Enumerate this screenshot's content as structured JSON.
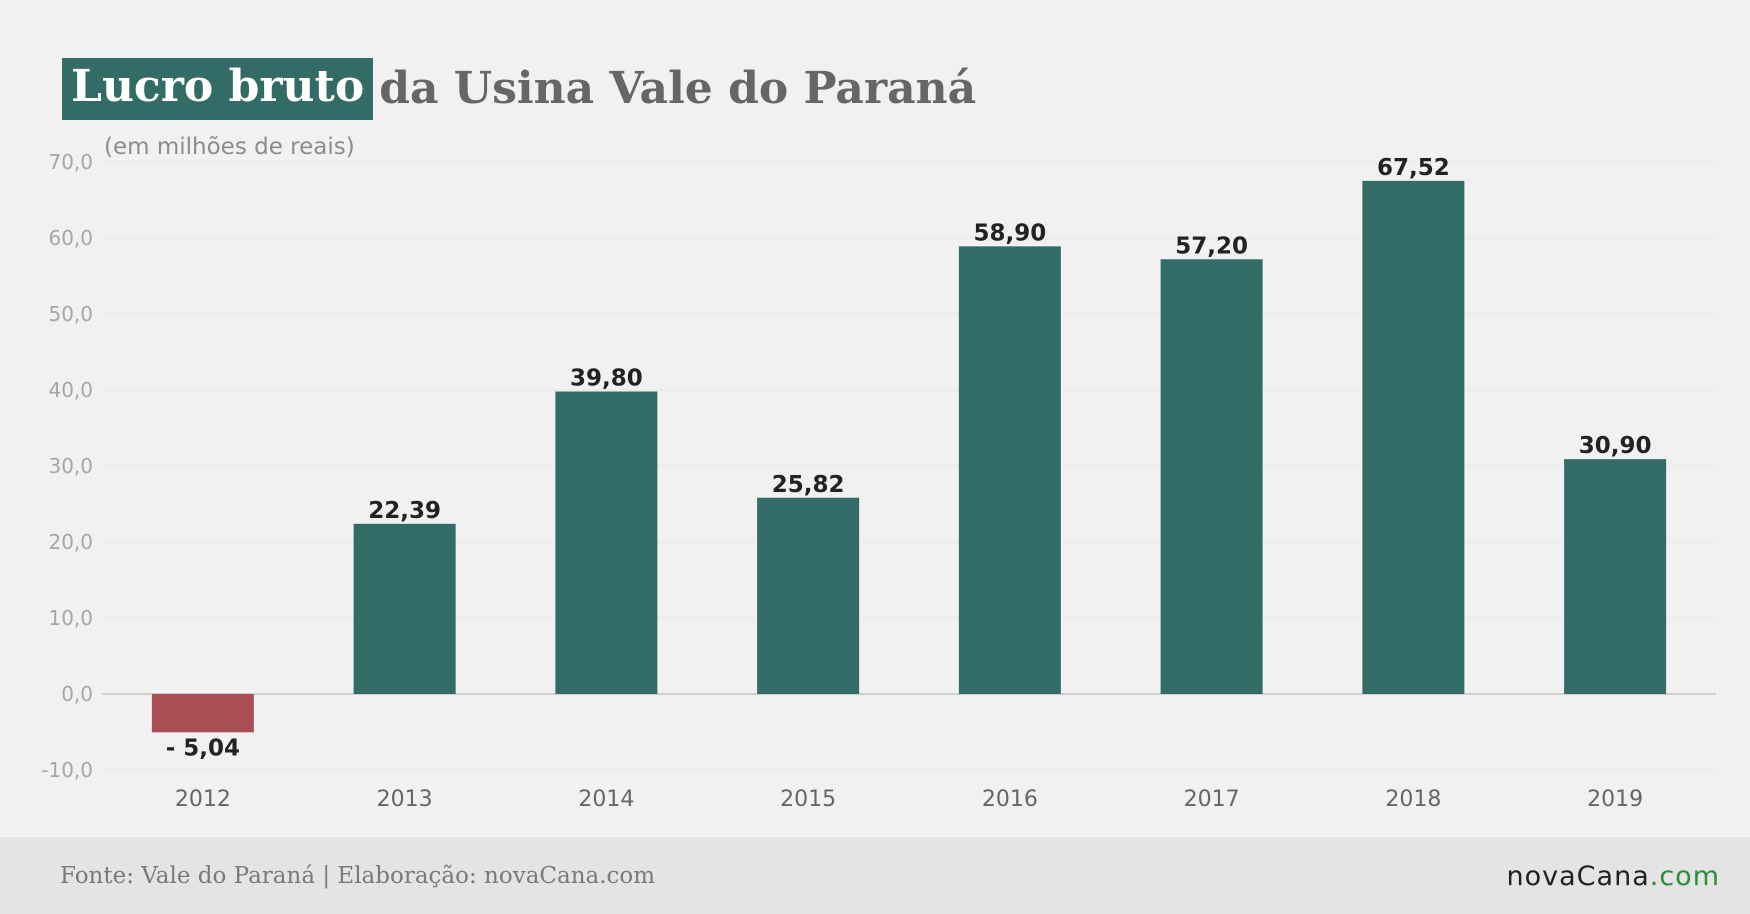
{
  "title": {
    "highlight": "Lucro bruto",
    "rest": "da Usina Vale do Paraná"
  },
  "subtitle": "(em milhões de reais)",
  "footer": {
    "source": "Fonte: Vale do Paraná | Elaboração: novaCana.com",
    "brand_name": "novaCana",
    "brand_tld": ".com"
  },
  "colors": {
    "positive": "#336b66",
    "negative": "#a84e54",
    "highlight": "#336b66"
  },
  "chart_data": {
    "type": "bar",
    "categories": [
      "2012",
      "2013",
      "2014",
      "2015",
      "2016",
      "2017",
      "2018",
      "2019"
    ],
    "values": [
      -5.04,
      22.39,
      39.8,
      25.82,
      58.9,
      57.2,
      67.52,
      30.9
    ],
    "value_labels": [
      "- 5,04",
      "22,39",
      "39,80",
      "25,82",
      "58,90",
      "57,20",
      "67,52",
      "30,90"
    ],
    "title": "Lucro bruto da Usina Vale do Paraná",
    "ylabel": "(em milhões de reais)",
    "ylim": [
      -10,
      70
    ],
    "yticks": [
      -10,
      0,
      10,
      20,
      30,
      40,
      50,
      60,
      70
    ],
    "ytick_labels": [
      "-10,0",
      "0,0",
      "10,0",
      "20,0",
      "30,0",
      "40,0",
      "50,0",
      "60,0",
      "70,0"
    ],
    "grid": true,
    "legend": "none"
  }
}
